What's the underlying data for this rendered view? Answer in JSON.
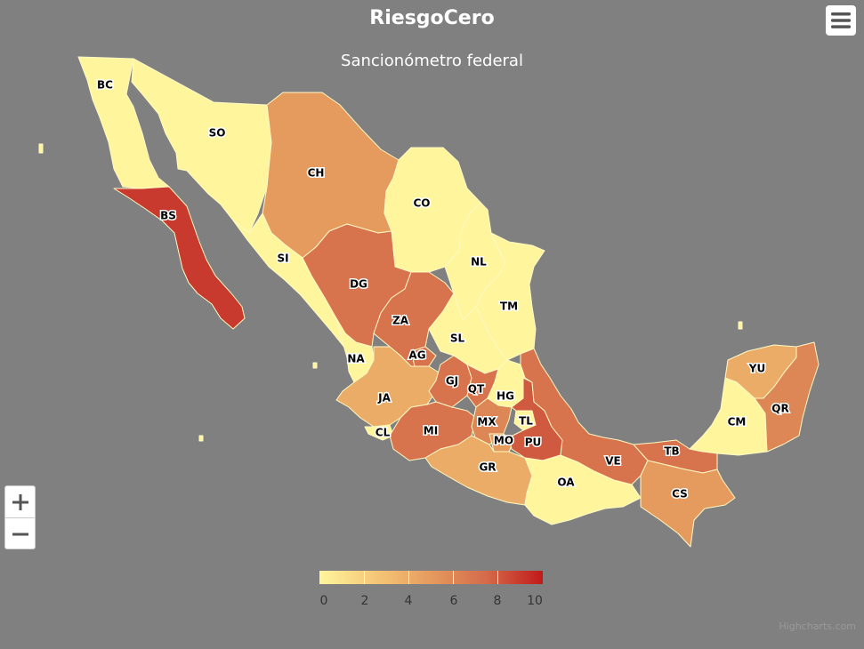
{
  "header": {
    "title": "RiesgoCero",
    "subtitle": "Sancionómetro federal"
  },
  "controls": {
    "menu_icon": "hamburger-icon",
    "zoom_in": "+",
    "zoom_out": "−"
  },
  "legend": {
    "min": 0,
    "max": 10,
    "ticks": [
      "0",
      "2",
      "4",
      "6",
      "8",
      "10"
    ],
    "colors": [
      "#fff59d",
      "#f5c777",
      "#e59a5e",
      "#d46a4a",
      "#c01a1a"
    ]
  },
  "credits": "Highcharts.com",
  "states": [
    {
      "code": "BC",
      "value": 0
    },
    {
      "code": "SO",
      "value": 0
    },
    {
      "code": "CH",
      "value": 5
    },
    {
      "code": "CO",
      "value": 0
    },
    {
      "code": "NL",
      "value": 0
    },
    {
      "code": "TM",
      "value": 0
    },
    {
      "code": "BS",
      "value": 9
    },
    {
      "code": "SI",
      "value": 0
    },
    {
      "code": "DG",
      "value": 7
    },
    {
      "code": "ZA",
      "value": 7
    },
    {
      "code": "SL",
      "value": 0
    },
    {
      "code": "NA",
      "value": 0
    },
    {
      "code": "AG",
      "value": 7
    },
    {
      "code": "JA",
      "value": 4
    },
    {
      "code": "GJ",
      "value": 7
    },
    {
      "code": "QT",
      "value": 7
    },
    {
      "code": "HG",
      "value": 0
    },
    {
      "code": "CL",
      "value": 0
    },
    {
      "code": "MI",
      "value": 7
    },
    {
      "code": "MX",
      "value": 6
    },
    {
      "code": "TL",
      "value": 0
    },
    {
      "code": "MO",
      "value": 5
    },
    {
      "code": "PU",
      "value": 8
    },
    {
      "code": "GR",
      "value": 4
    },
    {
      "code": "OA",
      "value": 0
    },
    {
      "code": "VE",
      "value": 7
    },
    {
      "code": "TB",
      "value": 7
    },
    {
      "code": "CS",
      "value": 5
    },
    {
      "code": "CM",
      "value": 0
    },
    {
      "code": "YU",
      "value": 4
    },
    {
      "code": "QR",
      "value": 6
    }
  ]
}
